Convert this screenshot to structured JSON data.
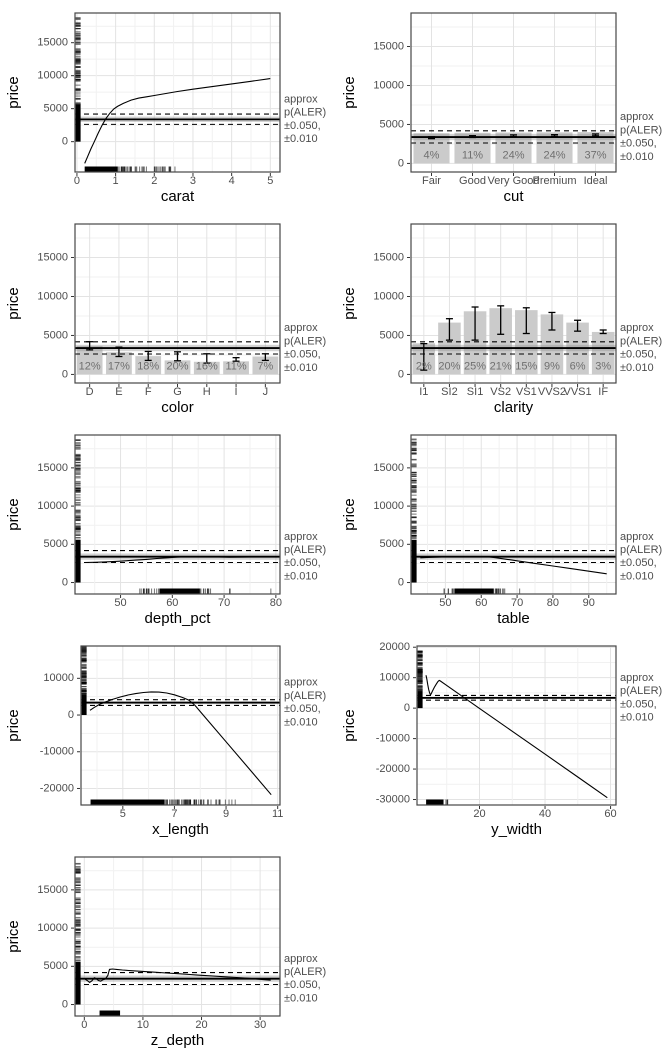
{
  "annotation": {
    "lines": [
      "approx",
      "p(ALER)",
      "±0.050,",
      "±0.010"
    ]
  },
  "band": {
    "mid": 3380,
    "inner": [
      2980,
      3800
    ],
    "outer": [
      2620,
      4180
    ]
  },
  "style": {
    "background": "#ffffff",
    "panel_border": "#474747",
    "grid_major": "#e3e3e3",
    "grid_minor": "#f1f1f1",
    "band_fill": "rgba(140,140,140,0.38)",
    "bar_fill": "#cbcbcb",
    "line_color": "#000000",
    "tick_label_color": "#4d4d4d",
    "axis_title_color": "#000000",
    "pct_color": "#6f6f6f",
    "annotation_color": "#4d4d4d",
    "rug_color": "#000000"
  },
  "price_rug": [
    {
      "type": "solid",
      "from": 0,
      "to": 5600
    },
    {
      "type": "scatter",
      "from": 5600,
      "to": 12500,
      "count": 58
    },
    {
      "type": "scatter",
      "from": 12500,
      "to": 18800,
      "count": 46
    }
  ],
  "chart_data": [
    {
      "name": "carat",
      "type": "line",
      "xlabel": "carat",
      "ylabel": "price",
      "xlim": [
        -0.05,
        5.25
      ],
      "xticks": [
        0,
        1,
        2,
        3,
        4,
        5
      ],
      "ylim": [
        -4600,
        19500
      ],
      "yticks": [
        0,
        5000,
        10000,
        15000
      ],
      "line": [
        [
          0.2,
          -3300
        ],
        [
          0.28,
          -2200
        ],
        [
          0.36,
          -1100
        ],
        [
          0.45,
          0
        ],
        [
          0.55,
          1300
        ],
        [
          0.65,
          2500
        ],
        [
          0.75,
          3500
        ],
        [
          0.85,
          4300
        ],
        [
          0.95,
          4950
        ],
        [
          1.05,
          5350
        ],
        [
          1.2,
          5800
        ],
        [
          1.4,
          6300
        ],
        [
          1.6,
          6600
        ],
        [
          1.8,
          6800
        ],
        [
          2.0,
          7000
        ],
        [
          2.3,
          7300
        ],
        [
          2.6,
          7600
        ],
        [
          3.0,
          7950
        ],
        [
          3.5,
          8350
        ],
        [
          4.0,
          8750
        ],
        [
          4.5,
          9150
        ],
        [
          5.0,
          9550
        ]
      ],
      "rug_left": "price",
      "rug_bottom": [
        {
          "type": "solid",
          "from": 0.2,
          "to": 1.05
        },
        {
          "type": "scatter",
          "from": 1.05,
          "to": 1.7,
          "count": 26
        },
        {
          "type": "scatter",
          "from": 1.7,
          "to": 2.25,
          "count": 13
        },
        {
          "type": "scatter",
          "from": 2.25,
          "to": 2.62,
          "count": 8
        }
      ]
    },
    {
      "name": "cut",
      "type": "bar",
      "xlabel": "cut",
      "ylabel": "price",
      "categories": [
        "Fair",
        "Good",
        "Very Good",
        "Premium",
        "Ideal"
      ],
      "values": [
        3880,
        3930,
        3970,
        3990,
        4020
      ],
      "ci": [
        [
          3180,
          3420
        ],
        [
          3330,
          3560
        ],
        [
          3440,
          3660
        ],
        [
          3470,
          3690
        ],
        [
          3540,
          3780
        ]
      ],
      "pct_labels": [
        "4%",
        "11%",
        "24%",
        "24%",
        "37%"
      ],
      "ylim": [
        -1100,
        19300
      ],
      "yticks": [
        0,
        5000,
        10000,
        15000
      ],
      "pct_y": 1000
    },
    {
      "name": "color",
      "type": "bar",
      "xlabel": "color",
      "ylabel": "price",
      "categories": [
        "D",
        "E",
        "F",
        "G",
        "H",
        "I",
        "J"
      ],
      "values": [
        3650,
        2850,
        2350,
        1800,
        1620,
        1680,
        2300
      ],
      "ci": [
        [
          3150,
          4200
        ],
        [
          2300,
          3500
        ],
        [
          1800,
          2950
        ],
        [
          1750,
          2900
        ],
        [
          1450,
          2650
        ],
        [
          1700,
          2150
        ],
        [
          1800,
          2650
        ]
      ],
      "pct_labels": [
        "12%",
        "17%",
        "18%",
        "20%",
        "16%",
        "11%",
        "7%"
      ],
      "ylim": [
        -1100,
        19300
      ],
      "yticks": [
        0,
        5000,
        10000,
        15000
      ],
      "pct_y": 1000
    },
    {
      "name": "clarity",
      "type": "bar",
      "xlabel": "clarity",
      "ylabel": "price",
      "categories": [
        "I1",
        "SI2",
        "SI1",
        "VS2",
        "VS1",
        "VVS2",
        "VVS1",
        "IF"
      ],
      "values": [
        4000,
        6650,
        8100,
        8500,
        8250,
        7700,
        6650,
        5450
      ],
      "ci": [
        [
          550,
          3950
        ],
        [
          4400,
          7150
        ],
        [
          4400,
          8650
        ],
        [
          5150,
          8800
        ],
        [
          5250,
          8550
        ],
        [
          5700,
          7950
        ],
        [
          5550,
          6950
        ],
        [
          5250,
          5700
        ]
      ],
      "pct_labels": [
        "2%",
        "20%",
        "25%",
        "21%",
        "15%",
        "9%",
        "6%",
        "3%"
      ],
      "ylim": [
        -1100,
        19300
      ],
      "yticks": [
        0,
        5000,
        10000,
        15000
      ],
      "pct_y": 1000
    },
    {
      "name": "depth_pct",
      "type": "line",
      "xlabel": "depth_pct",
      "ylabel": "price",
      "xlim": [
        41.2,
        80.8
      ],
      "xticks": [
        50,
        60,
        70,
        80
      ],
      "ylim": [
        -1500,
        19300
      ],
      "yticks": [
        0,
        5000,
        10000,
        15000
      ],
      "line": [
        [
          43,
          2620
        ],
        [
          45,
          2650
        ],
        [
          47,
          2700
        ],
        [
          49,
          2760
        ],
        [
          51,
          2840
        ],
        [
          53,
          2930
        ],
        [
          55,
          3030
        ],
        [
          57,
          3140
        ],
        [
          59,
          3240
        ],
        [
          61,
          3330
        ],
        [
          63,
          3380
        ],
        [
          65,
          3390
        ],
        [
          67,
          3370
        ],
        [
          69,
          3340
        ],
        [
          71,
          3320
        ],
        [
          73,
          3330
        ],
        [
          75,
          3350
        ],
        [
          77,
          3360
        ],
        [
          79,
          3350
        ]
      ],
      "rug_left": "price",
      "rug_bottom": [
        {
          "type": "scatter",
          "from": 53,
          "to": 57.5,
          "count": 16
        },
        {
          "type": "solid",
          "from": 57.5,
          "to": 65.3
        },
        {
          "type": "scatter",
          "from": 65.3,
          "to": 67.8,
          "count": 10
        },
        {
          "type": "scatter",
          "from": 70.9,
          "to": 71.4,
          "count": 2
        },
        {
          "type": "scatter",
          "from": 78.7,
          "to": 79.1,
          "count": 1
        }
      ]
    },
    {
      "name": "table",
      "type": "line",
      "xlabel": "table",
      "ylabel": "price",
      "xlim": [
        40.4,
        97.6
      ],
      "xticks": [
        50,
        60,
        70,
        80,
        90
      ],
      "ylim": [
        -1500,
        19300
      ],
      "yticks": [
        0,
        5000,
        10000,
        15000
      ],
      "line": [
        [
          43,
          3240
        ],
        [
          45,
          3280
        ],
        [
          47,
          3310
        ],
        [
          49,
          3340
        ],
        [
          51,
          3370
        ],
        [
          53,
          3390
        ],
        [
          55,
          3400
        ],
        [
          57,
          3400
        ],
        [
          59,
          3400
        ],
        [
          61,
          3390
        ],
        [
          62,
          3370
        ],
        [
          64,
          3250
        ],
        [
          70,
          2840
        ],
        [
          75,
          2500
        ],
        [
          80,
          2160
        ],
        [
          85,
          1820
        ],
        [
          90,
          1480
        ],
        [
          95,
          1140
        ]
      ],
      "rug_left": "price",
      "rug_bottom": [
        {
          "type": "scatter",
          "from": 49.5,
          "to": 52.5,
          "count": 7
        },
        {
          "type": "solid",
          "from": 52.5,
          "to": 63.5
        },
        {
          "type": "scatter",
          "from": 63.5,
          "to": 67,
          "count": 12
        },
        {
          "type": "scatter",
          "from": 70.3,
          "to": 70.8,
          "count": 1
        }
      ]
    },
    {
      "name": "x_length",
      "type": "line",
      "xlabel": "x_length",
      "ylabel": "price",
      "xlim": [
        3.38,
        11.09
      ],
      "xticks": [
        5,
        7,
        9,
        11
      ],
      "ylim": [
        -24500,
        18800
      ],
      "yticks": [
        -20000,
        -10000,
        0,
        10000
      ],
      "line": [
        [
          3.73,
          1300
        ],
        [
          3.9,
          2100
        ],
        [
          4.1,
          2900
        ],
        [
          4.35,
          3600
        ],
        [
          4.6,
          4250
        ],
        [
          4.9,
          4900
        ],
        [
          5.2,
          5450
        ],
        [
          5.5,
          5850
        ],
        [
          5.8,
          6150
        ],
        [
          6.1,
          6300
        ],
        [
          6.4,
          6250
        ],
        [
          6.7,
          6000
        ],
        [
          7.0,
          5500
        ],
        [
          7.3,
          4800
        ],
        [
          7.55,
          4100
        ],
        [
          7.8,
          2600
        ],
        [
          8.2,
          -700
        ],
        [
          9.0,
          -7300
        ],
        [
          10.0,
          -15500
        ],
        [
          10.75,
          -21700
        ]
      ],
      "rug_left": "price",
      "rug_bottom": [
        {
          "type": "solid",
          "from": 3.75,
          "to": 6.6
        },
        {
          "type": "scatter",
          "from": 6.6,
          "to": 8.1,
          "count": 48
        },
        {
          "type": "scatter",
          "from": 8.1,
          "to": 9.45,
          "count": 14
        }
      ]
    },
    {
      "name": "y_width",
      "type": "line",
      "xlabel": "y_width",
      "ylabel": "price",
      "xlim": [
        0.92,
        61.66
      ],
      "xticks": [
        20,
        40,
        60
      ],
      "ylim": [
        -31800,
        20400
      ],
      "yticks": [
        -30000,
        -20000,
        -10000,
        0,
        10000,
        20000
      ],
      "line": [
        [
          3.68,
          10800
        ],
        [
          3.9,
          9600
        ],
        [
          4.2,
          7800
        ],
        [
          4.5,
          6100
        ],
        [
          4.8,
          4900
        ],
        [
          5.0,
          4450
        ],
        [
          5.2,
          4600
        ],
        [
          5.6,
          5500
        ],
        [
          6.2,
          6800
        ],
        [
          6.8,
          7900
        ],
        [
          7.3,
          8700
        ],
        [
          7.7,
          9100
        ],
        [
          8.0,
          8950
        ],
        [
          10,
          7450
        ],
        [
          15,
          3700
        ],
        [
          20,
          -100
        ],
        [
          30,
          -7600
        ],
        [
          40,
          -15100
        ],
        [
          50,
          -22600
        ],
        [
          59,
          -29400
        ]
      ],
      "rug_left": "price",
      "rug_bottom": [
        {
          "type": "solid",
          "from": 3.7,
          "to": 8.9
        },
        {
          "type": "scatter",
          "from": 8.9,
          "to": 10.6,
          "count": 5
        }
      ]
    },
    {
      "name": "z_depth",
      "type": "line",
      "xlabel": "z_depth",
      "ylabel": "price",
      "xlim": [
        -1.59,
        33.39
      ],
      "xticks": [
        0,
        10,
        20,
        30
      ],
      "ylim": [
        -1500,
        19300
      ],
      "yticks": [
        0,
        5000,
        10000,
        15000
      ],
      "line": [
        [
          0.15,
          3300
        ],
        [
          0.5,
          3150
        ],
        [
          0.9,
          2900
        ],
        [
          1.3,
          3100
        ],
        [
          1.7,
          3500
        ],
        [
          2.0,
          3400
        ],
        [
          2.4,
          3150
        ],
        [
          2.8,
          3050
        ],
        [
          3.2,
          3250
        ],
        [
          3.6,
          3350
        ],
        [
          4.0,
          3800
        ],
        [
          4.3,
          4600
        ],
        [
          4.8,
          4650
        ],
        [
          5.5,
          4600
        ],
        [
          6.5,
          4520
        ],
        [
          8,
          4430
        ],
        [
          10,
          4330
        ],
        [
          12,
          4230
        ],
        [
          14,
          4130
        ],
        [
          16,
          4030
        ],
        [
          18,
          3930
        ],
        [
          20,
          3830
        ],
        [
          22,
          3730
        ],
        [
          24,
          3630
        ],
        [
          26,
          3530
        ],
        [
          28,
          3430
        ],
        [
          30,
          3300
        ],
        [
          31.8,
          3180
        ]
      ],
      "rug_left": "price",
      "rug_bottom": [
        {
          "type": "solid",
          "from": 2.6,
          "to": 6.1
        }
      ]
    }
  ]
}
